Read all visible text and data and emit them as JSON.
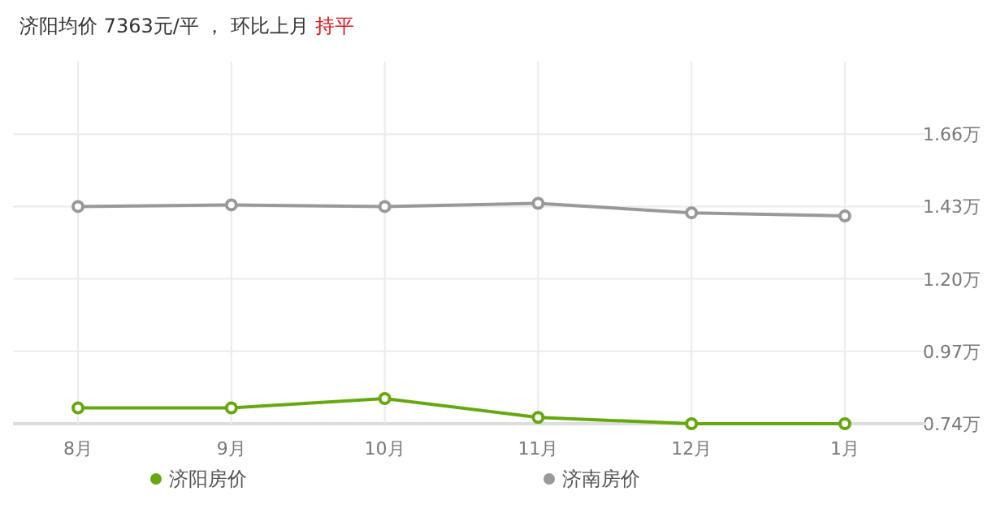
{
  "chart_data": {
    "type": "line",
    "title": "济阳均价 7363元/平 ， 环比上月",
    "subtitle": "持平",
    "categories": [
      "8月",
      "9月",
      "10月",
      "11月",
      "12月",
      "1月"
    ],
    "series": [
      {
        "name": "济阳房价",
        "color": "#66a80f",
        "values": [
          0.79,
          0.79,
          0.82,
          0.76,
          0.74,
          0.74
        ]
      },
      {
        "name": "济南房价",
        "color": "#999999",
        "values": [
          1.43,
          1.435,
          1.43,
          1.44,
          1.41,
          1.4
        ]
      }
    ],
    "ylim": [
      0.74,
      1.89
    ],
    "yticks": [
      {
        "value": 0.74,
        "label": "0.74万"
      },
      {
        "value": 0.97,
        "label": "0.97万"
      },
      {
        "value": 1.2,
        "label": "1.20万"
      },
      {
        "value": 1.43,
        "label": "1.43万"
      },
      {
        "value": 1.66,
        "label": "1.66万"
      }
    ],
    "grid": true,
    "legend": "bottom",
    "marker": "circle",
    "line_style": "solid"
  }
}
